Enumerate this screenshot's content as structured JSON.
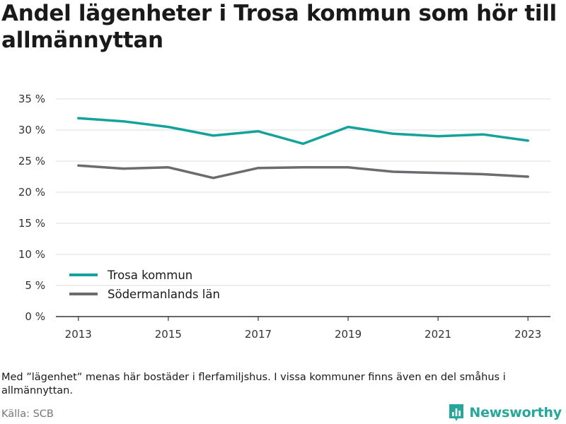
{
  "chart_data": {
    "type": "line",
    "title": "Andel lägenheter i Trosa kommun som hör till allmännyttan",
    "xlabel": "",
    "ylabel": "",
    "x": [
      2013,
      2014,
      2015,
      2016,
      2017,
      2018,
      2019,
      2020,
      2021,
      2022,
      2023
    ],
    "x_ticks": [
      2013,
      2015,
      2017,
      2019,
      2021,
      2023
    ],
    "y_ticks": [
      0,
      5,
      10,
      15,
      20,
      25,
      30,
      35
    ],
    "y_tick_labels": [
      "0 %",
      "5 %",
      "10 %",
      "15 %",
      "20 %",
      "25 %",
      "30 %",
      "35 %"
    ],
    "ylim": [
      0,
      35
    ],
    "xlim": [
      2012.5,
      2023.5
    ],
    "grid": true,
    "legend_position": "bottom-left",
    "series": [
      {
        "name": "Trosa kommun",
        "color": "#14a39a",
        "values": [
          31.9,
          31.4,
          30.5,
          29.1,
          29.8,
          27.8,
          30.5,
          29.4,
          29.0,
          29.3,
          28.3
        ]
      },
      {
        "name": "Södermanlands län",
        "color": "#6b6b70",
        "values": [
          24.3,
          23.8,
          24.0,
          22.3,
          23.9,
          24.0,
          24.0,
          23.3,
          23.1,
          22.9,
          22.5
        ]
      }
    ]
  },
  "footer": {
    "note": "Med ”lägenhet” menas här bostäder i flerfamiljshus. I vissa kommuner finns även en del småhus i allmännyttan.",
    "source": "Källa: SCB",
    "brand": "Newsworthy",
    "brand_color": "#27a79c",
    "brand_icon": "bar-chart-icon"
  }
}
